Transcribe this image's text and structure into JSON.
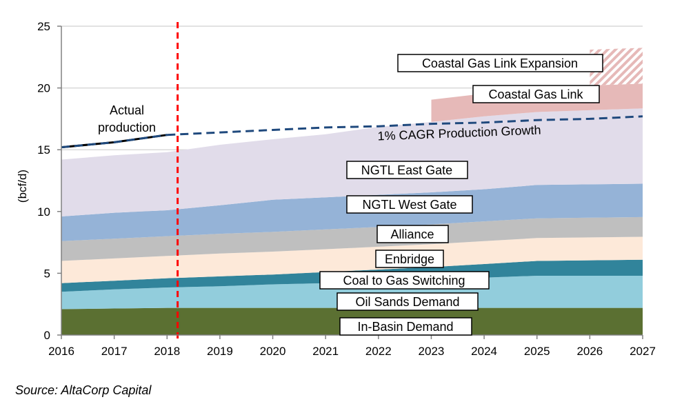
{
  "chart_data": {
    "type": "area",
    "title": "",
    "xlabel": "",
    "ylabel": "(bcf/d)",
    "x": [
      2016,
      2017,
      2018,
      2019,
      2020,
      2021,
      2022,
      2023,
      2024,
      2025,
      2026,
      2027
    ],
    "x_tick_labels": [
      "2016",
      "2017",
      "2018",
      "2019",
      "2020",
      "2021",
      "2022",
      "2023",
      "2024",
      "2025",
      "2026",
      "2027"
    ],
    "ylim": [
      0,
      25
    ],
    "y_ticks": [
      0,
      5,
      10,
      15,
      20,
      25
    ],
    "y_tick_labels": [
      "0",
      "5",
      "10",
      "15",
      "20",
      "25"
    ],
    "stacked": true,
    "series": [
      {
        "name": "In-Basin Demand",
        "color": "#5b7032",
        "values": [
          2.1,
          2.15,
          2.2,
          2.2,
          2.2,
          2.2,
          2.2,
          2.2,
          2.2,
          2.2,
          2.2,
          2.2
        ]
      },
      {
        "name": "Oil Sands Demand",
        "color": "#92cddc",
        "values": [
          1.4,
          1.55,
          1.65,
          1.75,
          1.9,
          2.0,
          2.15,
          2.3,
          2.45,
          2.6,
          2.6,
          2.6
        ]
      },
      {
        "name": "Coal to Gas Switching",
        "color": "#31849b",
        "values": [
          0.7,
          0.7,
          0.75,
          0.8,
          0.8,
          0.9,
          0.95,
          1.0,
          1.1,
          1.2,
          1.25,
          1.3
        ]
      },
      {
        "name": "Enbridge",
        "color": "#fde9d9",
        "values": [
          1.8,
          1.8,
          1.8,
          1.85,
          1.85,
          1.85,
          1.85,
          1.85,
          1.85,
          1.85,
          1.85,
          1.85
        ]
      },
      {
        "name": "Alliance",
        "color": "#bfbfbf",
        "values": [
          1.6,
          1.6,
          1.6,
          1.6,
          1.6,
          1.6,
          1.6,
          1.6,
          1.6,
          1.6,
          1.6,
          1.6
        ]
      },
      {
        "name": "NGTL West Gate",
        "color": "#95b3d7",
        "values": [
          2.0,
          2.1,
          2.1,
          2.3,
          2.6,
          2.6,
          2.6,
          2.6,
          2.6,
          2.7,
          2.7,
          2.7
        ]
      },
      {
        "name": "NGTL East Gate",
        "color": "#e1dcea",
        "values": [
          4.6,
          4.65,
          4.7,
          4.9,
          4.9,
          5.1,
          5.5,
          5.7,
          5.9,
          5.9,
          6.0,
          6.1
        ]
      },
      {
        "name": "Coastal Gas Link",
        "color": "#e6b9b8",
        "values": [
          0,
          0,
          0,
          0,
          0,
          0,
          0,
          1.8,
          1.85,
          1.95,
          2.0,
          2.0
        ]
      },
      {
        "name": "Coastal Gas Link Expansion",
        "color": "#e6b9b8",
        "pattern": "hatch",
        "values": [
          0,
          0,
          0,
          0,
          0,
          0,
          0,
          0,
          0,
          0,
          2.9,
          2.9
        ]
      }
    ],
    "lines": [
      {
        "name": "Actual production",
        "style": "solid",
        "color": "#000000",
        "x": [
          2016,
          2017,
          2018
        ],
        "y": [
          15.2,
          15.6,
          16.2
        ]
      },
      {
        "name": "1% CAGR Production Growth",
        "style": "dashed",
        "color": "#1f497d",
        "x": [
          2018,
          2019,
          2020,
          2021,
          2022,
          2023,
          2024,
          2025,
          2026,
          2027
        ],
        "y": [
          16.2,
          16.4,
          16.6,
          16.8,
          16.9,
          17.1,
          17.2,
          17.4,
          17.5,
          17.7
        ]
      }
    ],
    "vertical_marker": {
      "x": 2018.2,
      "color": "#ff0000",
      "style": "dashed"
    },
    "annotations": {
      "actual_production_line1": "Actual",
      "actual_production_line2": "production",
      "cagr_label": "1% CAGR Production Growth"
    },
    "segment_labels": {
      "cgl_expansion": "Coastal Gas Link Expansion",
      "cgl": "Coastal Gas Link",
      "east_gate": "NGTL East Gate",
      "west_gate": "NGTL West Gate",
      "alliance": "Alliance",
      "enbridge": "Enbridge",
      "coal_to_gas": "Coal to Gas Switching",
      "oil_sands": "Oil Sands Demand",
      "in_basin": "In-Basin Demand"
    }
  },
  "source": "Source: AltaCorp Capital"
}
